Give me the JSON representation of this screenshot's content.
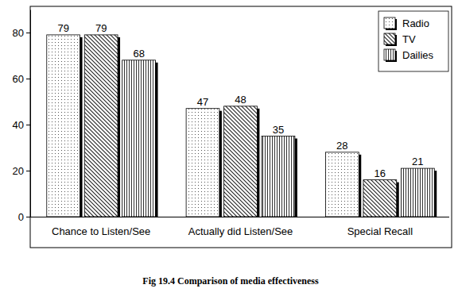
{
  "chart_data": {
    "type": "bar",
    "title": "Fig 19.4 Comparison of media effectiveness",
    "categories": [
      "Chance to Listen/See",
      "Actually did Listen/See",
      "Special Recall"
    ],
    "series": [
      {
        "name": "Radio",
        "color": "#ffffff",
        "values": [
          79,
          47,
          28
        ]
      },
      {
        "name": "TV",
        "color": "#ffffff",
        "values": [
          79,
          48,
          16
        ]
      },
      {
        "name": "Dailies",
        "color": "#ffffff",
        "values": [
          68,
          35,
          21
        ]
      }
    ],
    "ylim": [
      0,
      90
    ],
    "yticks": [
      0,
      20,
      40,
      60,
      80
    ],
    "data_labels": true,
    "legend": "upper right",
    "grid": false
  }
}
